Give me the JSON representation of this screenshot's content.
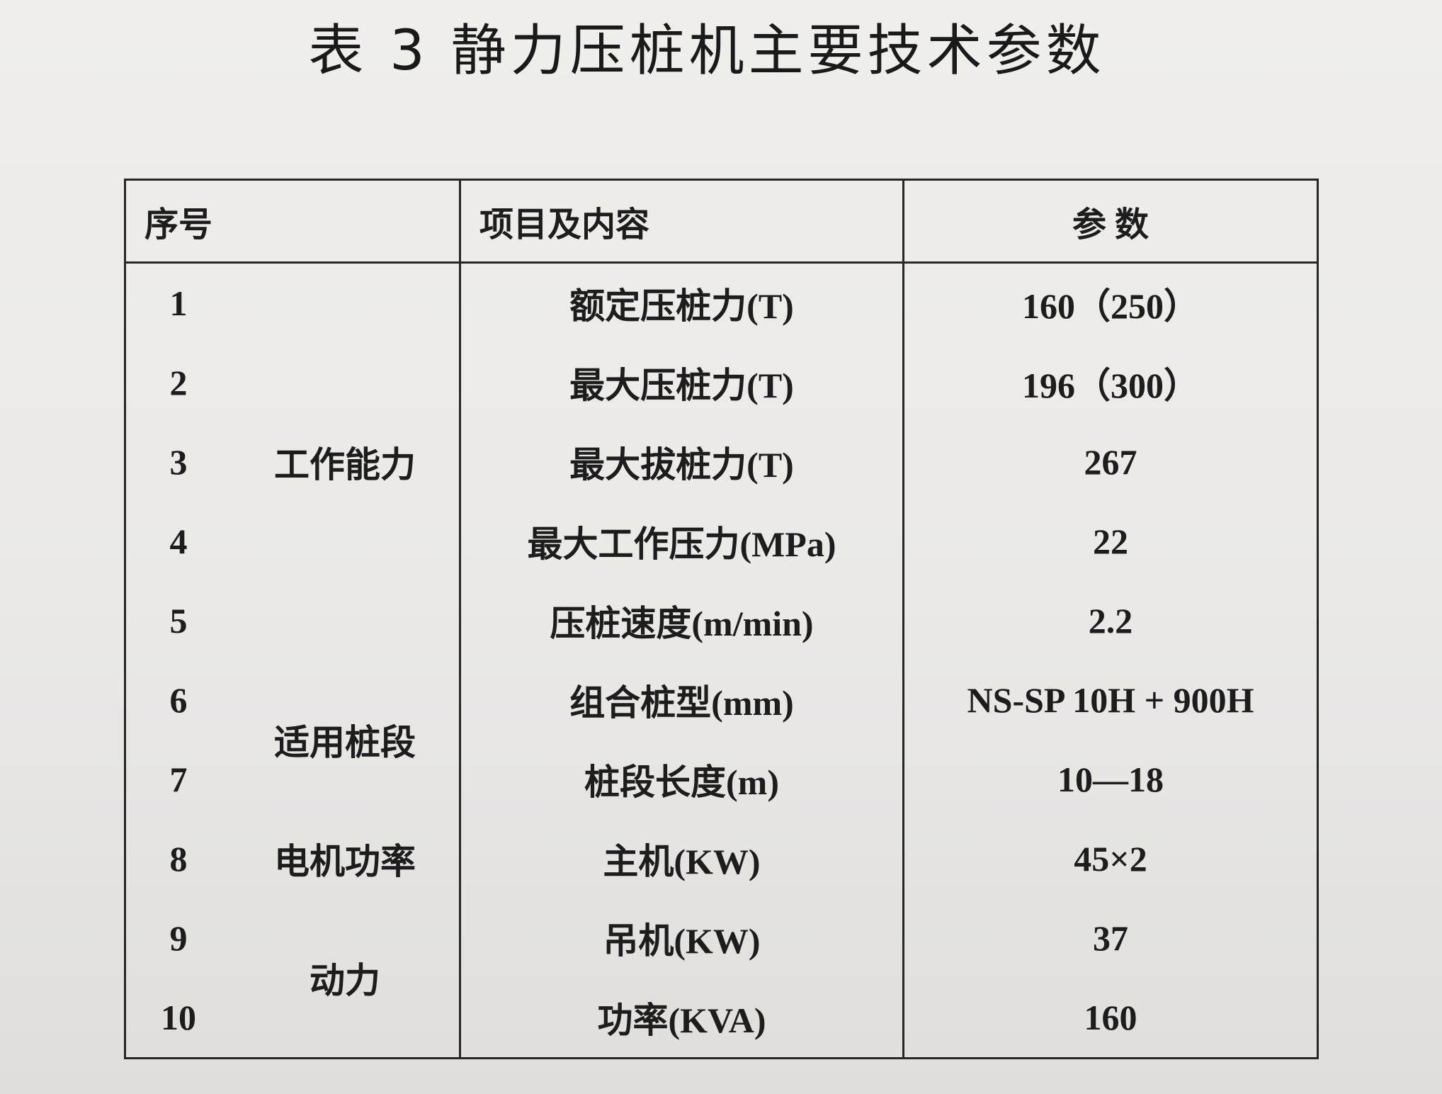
{
  "title": "表 3 静力压桩机主要技术参数",
  "table": {
    "headers": {
      "index": "序号",
      "item": "项目及内容",
      "value": "参 数"
    },
    "groups": [
      {
        "label": "工作能力",
        "items": [
          {
            "index": "1",
            "item": "额定压桩力(T)",
            "value": "160（250）"
          },
          {
            "index": "2",
            "item": "最大压桩力(T)",
            "value": "196（300）"
          },
          {
            "index": "3",
            "item": "最大拔桩力(T)",
            "value": "267"
          },
          {
            "index": "4",
            "item": "最大工作压力(MPa)",
            "value": "22"
          },
          {
            "index": "5",
            "item": "压桩速度(m/min)",
            "value": "2.2"
          }
        ]
      },
      {
        "label": "适用桩段",
        "items": [
          {
            "index": "6",
            "item": "组合桩型(mm)",
            "value": "NS-SP 10H + 900H"
          },
          {
            "index": "7",
            "item": "桩段长度(m)",
            "value": "10—18"
          }
        ]
      },
      {
        "label": "电机功率",
        "items": [
          {
            "index": "8",
            "item": "主机(KW)",
            "value": "45×2"
          }
        ]
      },
      {
        "label": "动力",
        "items": [
          {
            "index": "9",
            "item": "吊机(KW)",
            "value": "37"
          },
          {
            "index": "10",
            "item": "功率(KVA)",
            "value": "160"
          }
        ]
      }
    ]
  }
}
